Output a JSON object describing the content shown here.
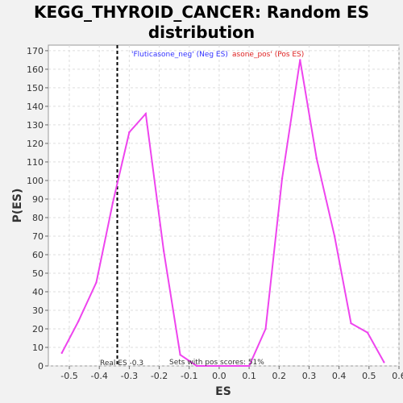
{
  "chart_data": {
    "type": "line",
    "title_line1": "KEGG_THYROID_CANCER: Random ES",
    "title_line2": "distribution",
    "xlabel": "ES",
    "ylabel": "P(ES)",
    "xlim": [
      -0.57,
      0.6
    ],
    "ylim": [
      0,
      173
    ],
    "x_ticks": [
      -0.5,
      -0.4,
      -0.3,
      -0.2,
      -0.1,
      0.0,
      0.1,
      0.2,
      0.3,
      0.4,
      0.5,
      0.6
    ],
    "y_ticks": [
      0,
      10,
      20,
      30,
      40,
      50,
      60,
      70,
      80,
      90,
      100,
      110,
      120,
      130,
      140,
      150,
      160,
      170
    ],
    "grid": true,
    "series": [
      {
        "color": "#ee44ee",
        "x": [
          -0.525,
          -0.47,
          -0.41,
          -0.355,
          -0.3,
          -0.245,
          -0.185,
          -0.13,
          -0.075,
          0.0,
          0.1,
          0.155,
          0.21,
          0.27,
          0.325,
          0.385,
          0.44,
          0.495,
          0.55
        ],
        "y": [
          7,
          24,
          45,
          88,
          126,
          136,
          62,
          6,
          0,
          0,
          0,
          20,
          101,
          165,
          112,
          70,
          23,
          18,
          2
        ]
      }
    ],
    "real_es": -0.34,
    "annotations": {
      "real_es_label": "Real ES -0.3",
      "pos_scores_label": "Sets with pos scores: 51%"
    },
    "legend": {
      "neg_label": "'Fluticasone_neg' (Neg ES)",
      "pos_label": "asone_pos' (Pos ES)",
      "neg_color": "#3333ff",
      "pos_color": "#dd2222"
    }
  }
}
